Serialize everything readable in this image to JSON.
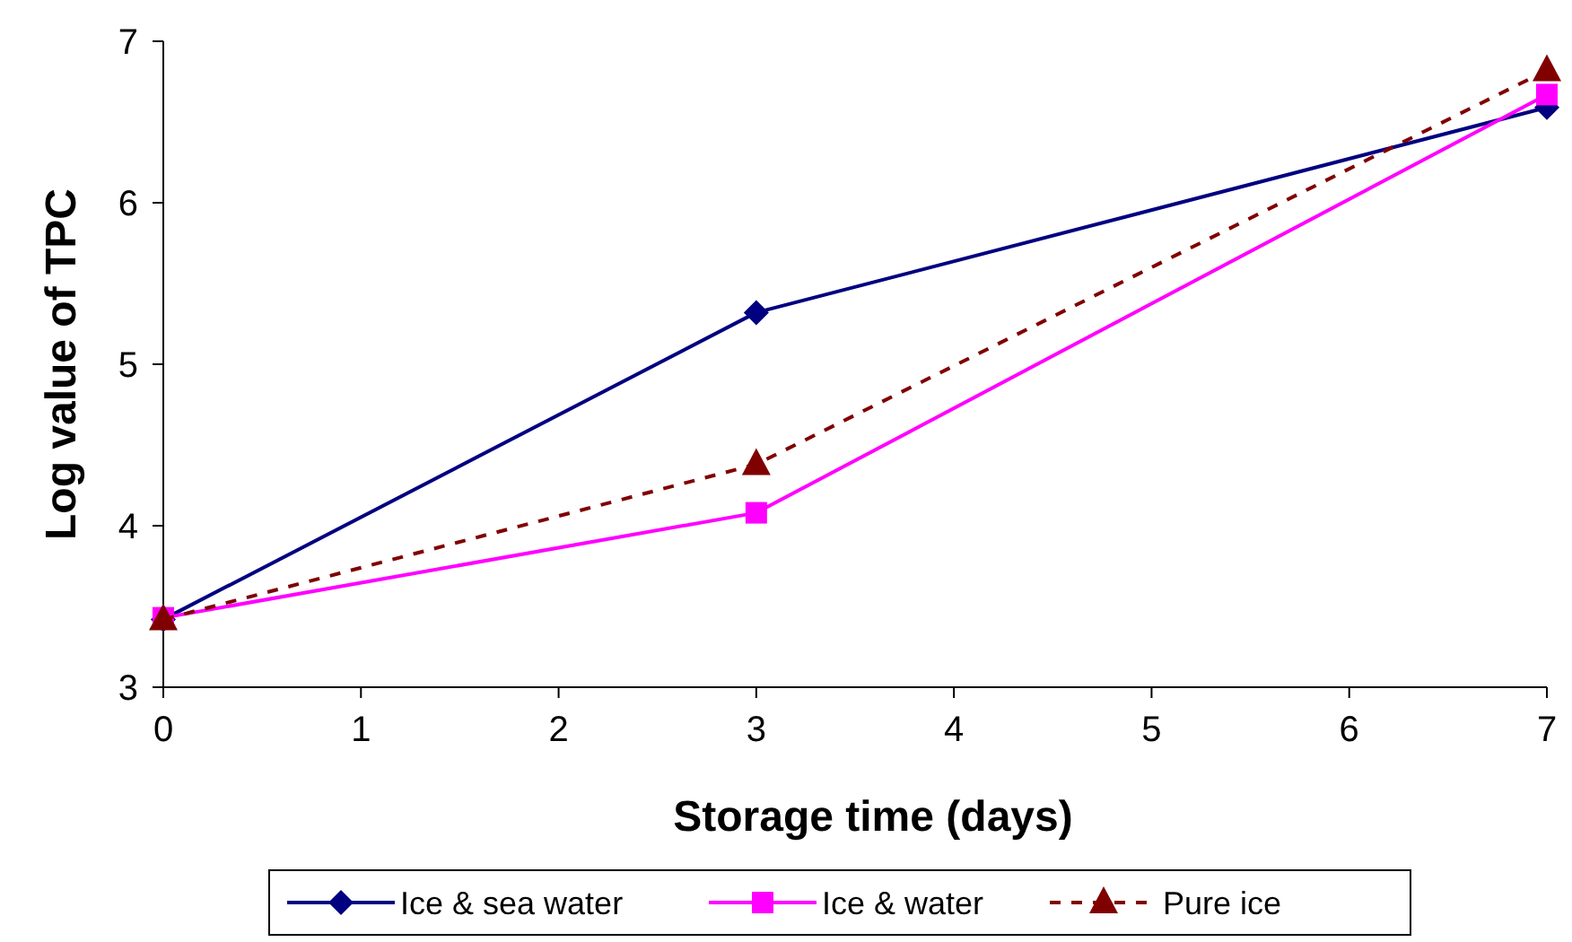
{
  "chart_data": {
    "type": "line",
    "xlabel": "Storage time (days)",
    "ylabel": "Log value of TPC",
    "x": [
      0,
      3,
      7
    ],
    "series": [
      {
        "name": "Ice & sea water",
        "color": "#000080",
        "values": [
          3.42,
          5.32,
          6.59
        ],
        "marker": "diamond",
        "line_style": "solid"
      },
      {
        "name": "Ice & water",
        "color": "#ff00ff",
        "values": [
          3.43,
          4.08,
          6.67
        ],
        "marker": "square",
        "line_style": "solid"
      },
      {
        "name": "Pure ice",
        "color": "#800000",
        "values": [
          3.42,
          4.38,
          6.82
        ],
        "marker": "triangle",
        "line_style": "dashed"
      }
    ],
    "xlim": [
      0,
      7
    ],
    "xticks": [
      0,
      1,
      2,
      3,
      4,
      5,
      6,
      7
    ],
    "ylim": [
      3,
      7
    ],
    "yticks": [
      3,
      4,
      5,
      6,
      7
    ],
    "grid": false,
    "legend": "bottom"
  }
}
